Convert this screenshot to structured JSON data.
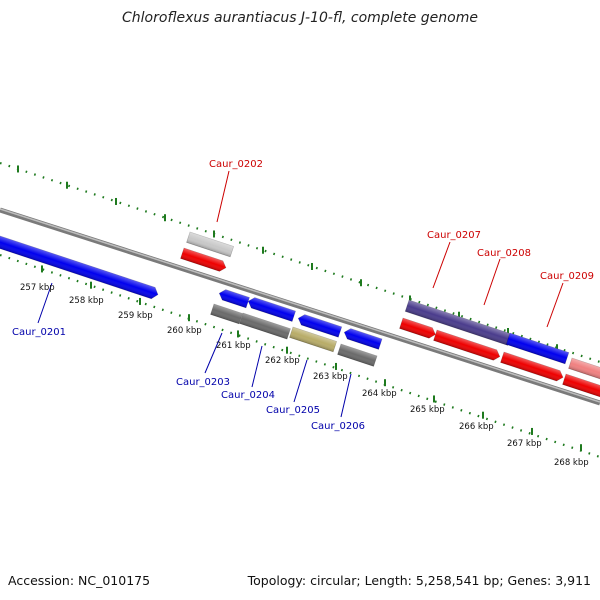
{
  "title": "Chloroflexus aurantiacus J-10-fl, complete genome",
  "footer": {
    "accession": "Accession: NC_010175",
    "summary": "Topology: circular; Length: 5,258,541 bp; Genes: 3,911"
  },
  "colors": {
    "background": "#ffffff",
    "tick_green": "#1e7a1e",
    "backbone": "#8a8a8a",
    "reverse_label": "#cc0000",
    "forward_label": "#0000aa"
  },
  "scale_ticks": [
    "257 kbp",
    "258 kbp",
    "259 kbp",
    "260 kbp",
    "261 kbp",
    "262 kbp",
    "263 kbp",
    "264 kbp",
    "265 kbp",
    "266 kbp",
    "267 kbp",
    "268 kbp"
  ],
  "reverse_genes": [
    {
      "id": "Caur_0202",
      "label": "Caur_0202"
    },
    {
      "id": "Caur_0207",
      "label": "Caur_0207"
    },
    {
      "id": "Caur_0208",
      "label": "Caur_0208"
    },
    {
      "id": "Caur_0209",
      "label": "Caur_0209"
    }
  ],
  "forward_genes": [
    {
      "id": "Caur_0201",
      "label": "Caur_0201"
    },
    {
      "id": "Caur_0203",
      "label": "Caur_0203"
    },
    {
      "id": "Caur_0204",
      "label": "Caur_0204"
    },
    {
      "id": "Caur_0205",
      "label": "Caur_0205"
    },
    {
      "id": "Caur_0206",
      "label": "Caur_0206"
    }
  ]
}
